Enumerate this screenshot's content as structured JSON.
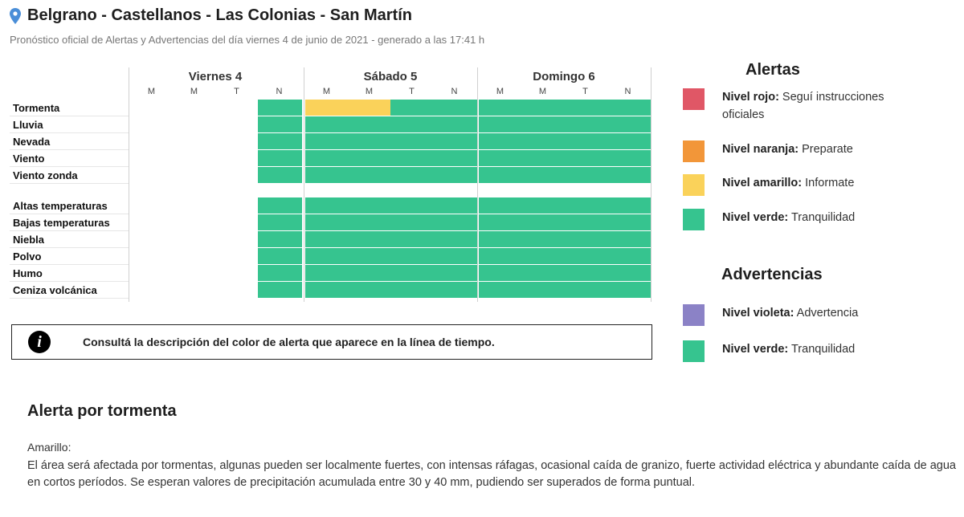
{
  "header": {
    "title": "Belgrano - Castellanos - Las Colonias - San Martín",
    "subtitle": "Pronóstico oficial de Alertas y Advertencias del día viernes 4 de junio de 2021 - generado a las 17:41 h"
  },
  "colors": {
    "verde": "#36c48f",
    "amarillo": "#fad25a",
    "naranja": "#f29639",
    "rojo": "#e05766",
    "violeta": "#8b82c6",
    "empty": "#ffffff",
    "pin": "#4a8ed8"
  },
  "timeline": {
    "days": [
      {
        "label": "Viernes 4",
        "periods": [
          "M",
          "M",
          "T",
          "N"
        ]
      },
      {
        "label": "Sábado 5",
        "periods": [
          "M",
          "M",
          "T",
          "N"
        ]
      },
      {
        "label": "Domingo 6",
        "periods": [
          "M",
          "M",
          "T",
          "N"
        ]
      }
    ],
    "rows": [
      {
        "label": "Tormenta",
        "levels": [
          "none",
          "none",
          "none",
          "verde",
          "amarillo",
          "amarillo",
          "verde",
          "verde",
          "verde",
          "verde",
          "verde",
          "verde"
        ]
      },
      {
        "label": "Lluvia",
        "levels": [
          "none",
          "none",
          "none",
          "verde",
          "verde",
          "verde",
          "verde",
          "verde",
          "verde",
          "verde",
          "verde",
          "verde"
        ]
      },
      {
        "label": "Nevada",
        "levels": [
          "none",
          "none",
          "none",
          "verde",
          "verde",
          "verde",
          "verde",
          "verde",
          "verde",
          "verde",
          "verde",
          "verde"
        ]
      },
      {
        "label": "Viento",
        "levels": [
          "none",
          "none",
          "none",
          "verde",
          "verde",
          "verde",
          "verde",
          "verde",
          "verde",
          "verde",
          "verde",
          "verde"
        ]
      },
      {
        "label": "Viento zonda",
        "levels": [
          "none",
          "none",
          "none",
          "verde",
          "verde",
          "verde",
          "verde",
          "verde",
          "verde",
          "verde",
          "verde",
          "verde"
        ]
      },
      {
        "label": "Altas temperaturas",
        "levels": [
          "none",
          "none",
          "none",
          "verde",
          "verde",
          "verde",
          "verde",
          "verde",
          "verde",
          "verde",
          "verde",
          "verde"
        ]
      },
      {
        "label": "Bajas temperaturas",
        "levels": [
          "none",
          "none",
          "none",
          "verde",
          "verde",
          "verde",
          "verde",
          "verde",
          "verde",
          "verde",
          "verde",
          "verde"
        ]
      },
      {
        "label": "Niebla",
        "levels": [
          "none",
          "none",
          "none",
          "verde",
          "verde",
          "verde",
          "verde",
          "verde",
          "verde",
          "verde",
          "verde",
          "verde"
        ]
      },
      {
        "label": "Polvo",
        "levels": [
          "none",
          "none",
          "none",
          "verde",
          "verde",
          "verde",
          "verde",
          "verde",
          "verde",
          "verde",
          "verde",
          "verde"
        ]
      },
      {
        "label": "Humo",
        "levels": [
          "none",
          "none",
          "none",
          "verde",
          "verde",
          "verde",
          "verde",
          "verde",
          "verde",
          "verde",
          "verde",
          "verde"
        ]
      },
      {
        "label": "Ceniza volcánica",
        "levels": [
          "none",
          "none",
          "none",
          "verde",
          "verde",
          "verde",
          "verde",
          "verde",
          "verde",
          "verde",
          "verde",
          "verde"
        ]
      }
    ]
  },
  "info": {
    "icon": "info-icon",
    "text": "Consultá la descripción del color de alerta que aparece en la línea de tiempo."
  },
  "legend": {
    "alertas_title": "Alertas",
    "alertas": [
      {
        "color": "rojo",
        "bold": "Nivel rojo:",
        "text": " Seguí instrucciones oficiales"
      },
      {
        "color": "naranja",
        "bold": "Nivel naranja:",
        "text": " Preparate"
      },
      {
        "color": "amarillo",
        "bold": "Nivel amarillo:",
        "text": " Informate"
      },
      {
        "color": "verde",
        "bold": "Nivel verde:",
        "text": " Tranquilidad"
      }
    ],
    "advertencias_title": "Advertencias",
    "advertencias": [
      {
        "color": "violeta",
        "bold": "Nivel violeta:",
        "text": " Advertencia"
      },
      {
        "color": "verde",
        "bold": "Nivel verde:",
        "text": " Tranquilidad"
      }
    ]
  },
  "detail": {
    "title": "Alerta por tormenta",
    "level": "Amarillo:",
    "body": "El área será afectada por tormentas, algunas pueden ser localmente fuertes, con intensas ráfagas, ocasional caída de granizo, fuerte actividad eléctrica y abundante caída de agua en cortos períodos. Se esperan valores de precipitación acumulada entre 30 y 40 mm, pudiendo ser superados de forma puntual."
  }
}
